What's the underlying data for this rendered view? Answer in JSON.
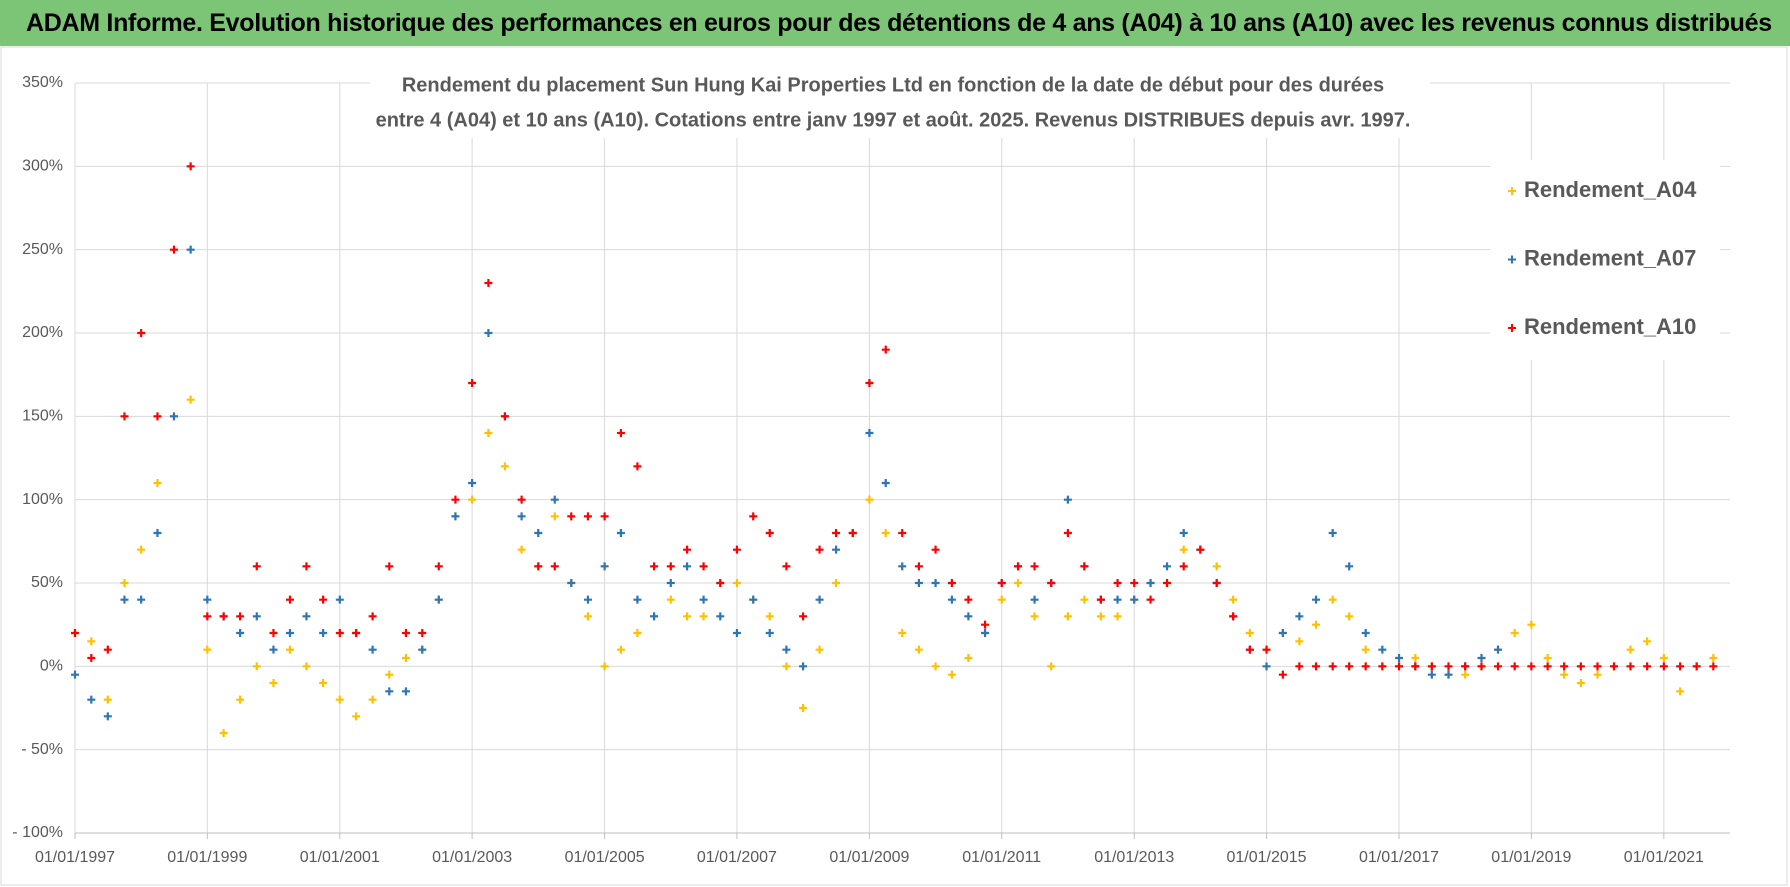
{
  "header": {
    "title": "ADAM Informe. Evolution historique des performances en euros pour des détentions de 4 ans (A04) à 10 ans (A10) avec les revenus connus distribués"
  },
  "chart_data": {
    "type": "scatter",
    "title": [
      "Rendement du placement Sun Hung Kai Properties Ltd en fonction de la date de début pour des durées",
      "entre 4 (A04) et 10 ans (A10).  Cotations entre janv 1997 et août. 2025. Revenus DISTRIBUES depuis avr. 1997."
    ],
    "x": [
      "1997-01-01",
      "1997-04-01",
      "1997-07-01",
      "1997-10-01",
      "1998-01-01",
      "1998-04-01",
      "1998-07-01",
      "1998-10-01",
      "1999-01-01",
      "1999-04-01",
      "1999-07-01",
      "1999-10-01",
      "2000-01-01",
      "2000-04-01",
      "2000-07-01",
      "2000-10-01",
      "2001-01-01",
      "2001-04-01",
      "2001-07-01",
      "2001-10-01",
      "2002-01-01",
      "2002-04-01",
      "2002-07-01",
      "2002-10-01",
      "2003-01-01",
      "2003-04-01",
      "2003-07-01",
      "2003-10-01",
      "2004-01-01",
      "2004-04-01",
      "2004-07-01",
      "2004-10-01",
      "2005-01-01",
      "2005-04-01",
      "2005-07-01",
      "2005-10-01",
      "2006-01-01",
      "2006-04-01",
      "2006-07-01",
      "2006-10-01",
      "2007-01-01",
      "2007-04-01",
      "2007-07-01",
      "2007-10-01",
      "2008-01-01",
      "2008-04-01",
      "2008-07-01",
      "2008-10-01",
      "2009-01-01",
      "2009-04-01",
      "2009-07-01",
      "2009-10-01",
      "2010-01-01",
      "2010-04-01",
      "2010-07-01",
      "2010-10-01",
      "2011-01-01",
      "2011-04-01",
      "2011-07-01",
      "2011-10-01",
      "2012-01-01",
      "2012-04-01",
      "2012-07-01",
      "2012-10-01",
      "2013-01-01",
      "2013-04-01",
      "2013-07-01",
      "2013-10-01",
      "2014-01-01",
      "2014-04-01",
      "2014-07-01",
      "2014-10-01",
      "2015-01-01",
      "2015-04-01",
      "2015-07-01",
      "2015-10-01",
      "2016-01-01",
      "2016-04-01",
      "2016-07-01",
      "2016-10-01",
      "2017-01-01",
      "2017-04-01",
      "2017-07-01",
      "2017-10-01",
      "2018-01-01",
      "2018-04-01",
      "2018-07-01",
      "2018-10-01",
      "2019-01-01",
      "2019-04-01",
      "2019-07-01",
      "2019-10-01",
      "2020-01-01",
      "2020-04-01",
      "2020-07-01",
      "2020-10-01",
      "2021-01-01",
      "2021-04-01",
      "2021-07-01",
      "2021-10-01"
    ],
    "series": [
      {
        "name": "Rendement_A04",
        "color": "#ffc000",
        "values": [
          20,
          15,
          -20,
          50,
          70,
          110,
          150,
          160,
          10,
          -40,
          -20,
          0,
          -10,
          10,
          0,
          -10,
          -20,
          -30,
          -20,
          -5,
          5,
          10,
          40,
          90,
          100,
          140,
          120,
          70,
          60,
          90,
          50,
          30,
          0,
          10,
          20,
          30,
          40,
          30,
          30,
          50,
          50,
          40,
          30,
          0,
          -25,
          10,
          50,
          80,
          100,
          80,
          20,
          10,
          0,
          -5,
          5,
          20,
          40,
          50,
          30,
          0,
          30,
          40,
          30,
          30,
          40,
          50,
          50,
          70,
          70,
          60,
          40,
          20,
          10,
          20,
          15,
          25,
          40,
          30,
          10,
          0,
          0,
          5,
          0,
          -5,
          -5,
          0,
          10,
          20,
          25,
          5,
          -5,
          -10,
          -5,
          0,
          10,
          15,
          5,
          -15,
          0,
          5
        ]
      },
      {
        "name": "Rendement_A07",
        "color": "#2e75b6",
        "values": [
          -5,
          -20,
          -30,
          40,
          40,
          80,
          150,
          250,
          40,
          30,
          20,
          30,
          10,
          20,
          30,
          20,
          40,
          20,
          10,
          -15,
          -15,
          10,
          40,
          90,
          110,
          200,
          150,
          90,
          80,
          100,
          50,
          40,
          60,
          80,
          40,
          30,
          50,
          60,
          40,
          30,
          20,
          40,
          20,
          10,
          0,
          40,
          70,
          80,
          140,
          110,
          60,
          50,
          50,
          40,
          30,
          20,
          50,
          60,
          40,
          50,
          100,
          60,
          40,
          40,
          40,
          50,
          60,
          80,
          70,
          50,
          30,
          10,
          0,
          20,
          30,
          40,
          80,
          60,
          20,
          10,
          5,
          0,
          -5,
          -5,
          0,
          5,
          10,
          null,
          null,
          null,
          null,
          null,
          null,
          null,
          null,
          null,
          null,
          null,
          null,
          null
        ]
      },
      {
        "name": "Rendement_A10",
        "color": "#ff0000",
        "values": [
          20,
          5,
          10,
          150,
          200,
          150,
          250,
          300,
          30,
          30,
          30,
          60,
          20,
          40,
          60,
          40,
          20,
          20,
          30,
          60,
          20,
          20,
          60,
          100,
          170,
          230,
          150,
          100,
          60,
          60,
          90,
          90,
          90,
          140,
          120,
          60,
          60,
          70,
          60,
          50,
          70,
          90,
          80,
          60,
          30,
          70,
          80,
          80,
          170,
          190,
          80,
          60,
          70,
          50,
          40,
          25,
          50,
          60,
          60,
          50,
          80,
          60,
          40,
          50,
          50,
          40,
          50,
          60,
          70,
          50,
          30,
          10,
          10,
          -5,
          0,
          0,
          0,
          0,
          0,
          0,
          0,
          0,
          0,
          0,
          0,
          0,
          0,
          0,
          0,
          0,
          0,
          0,
          0,
          0,
          0,
          0,
          0,
          0,
          0,
          0
        ]
      }
    ],
    "xlim": [
      "1997-01-01",
      "2022-01-01"
    ],
    "xticks": [
      {
        "value": "1997-01-01",
        "label": "01/01/1997"
      },
      {
        "value": "1999-01-01",
        "label": "01/01/1999"
      },
      {
        "value": "2001-01-01",
        "label": "01/01/2001"
      },
      {
        "value": "2003-01-01",
        "label": "01/01/2003"
      },
      {
        "value": "2005-01-01",
        "label": "01/01/2005"
      },
      {
        "value": "2007-01-01",
        "label": "01/01/2007"
      },
      {
        "value": "2009-01-01",
        "label": "01/01/2009"
      },
      {
        "value": "2011-01-01",
        "label": "01/01/2011"
      },
      {
        "value": "2013-01-01",
        "label": "01/01/2013"
      },
      {
        "value": "2015-01-01",
        "label": "01/01/2015"
      },
      {
        "value": "2017-01-01",
        "label": "01/01/2017"
      },
      {
        "value": "2019-01-01",
        "label": "01/01/2019"
      },
      {
        "value": "2021-01-01",
        "label": "01/01/2021"
      }
    ],
    "ylim": [
      -100,
      350
    ],
    "yticks": [
      {
        "value": -100,
        "label": "- 100%"
      },
      {
        "value": -50,
        "label": "- 50%"
      },
      {
        "value": 0,
        "label": "0%"
      },
      {
        "value": 50,
        "label": "50%"
      },
      {
        "value": 100,
        "label": "100%"
      },
      {
        "value": 150,
        "label": "150%"
      },
      {
        "value": 200,
        "label": "200%"
      },
      {
        "value": 250,
        "label": "250%"
      },
      {
        "value": 300,
        "label": "300%"
      },
      {
        "value": 350,
        "label": "350%"
      }
    ],
    "grid": true,
    "legend": "right"
  }
}
